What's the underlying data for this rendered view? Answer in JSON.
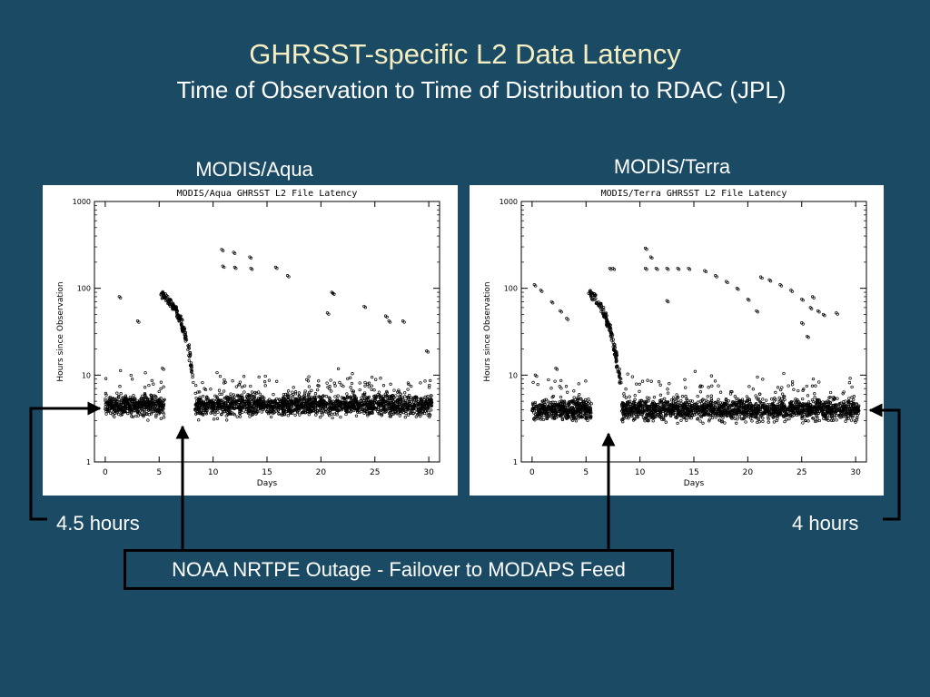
{
  "slide": {
    "title": "GHRSST-specific L2 Data Latency",
    "subtitle": "Time of Observation to Time of Distribution to RDAC (JPL)"
  },
  "panels": {
    "aqua_heading": "MODIS/Aqua",
    "terra_heading": "MODIS/Terra"
  },
  "annotations": {
    "aqua_latency": "4.5 hours",
    "terra_latency": "4 hours",
    "outage": "NOAA NRTPE Outage - Failover to MODAPS Feed"
  },
  "colors": {
    "background": "#1a4a64",
    "title": "#f5eec2",
    "text": "#ffffff",
    "arrows": "#000000"
  },
  "chart_data": [
    {
      "type": "scatter",
      "title": "MODIS/Aqua GHRSST L2 File Latency",
      "xlabel": "Days",
      "ylabel": "Hours since Observation",
      "xlim": [
        -1,
        31
      ],
      "ylim": [
        1,
        1000
      ],
      "log_y": true,
      "x_ticks": [
        0,
        5,
        10,
        15,
        20,
        25,
        30
      ],
      "y_ticks": [
        1,
        10,
        100,
        1000
      ],
      "baseline": {
        "median_hours": 4.5,
        "gap": [
          5.5,
          8.3
        ]
      },
      "outage_decay": [
        [
          5.2,
          85
        ],
        [
          6.0,
          70
        ],
        [
          6.6,
          55
        ],
        [
          7.0,
          42
        ],
        [
          7.4,
          30
        ],
        [
          7.8,
          18
        ],
        [
          8.2,
          8
        ]
      ],
      "outliers": [
        [
          1.3,
          80
        ],
        [
          3.0,
          42
        ],
        [
          10.8,
          280
        ],
        [
          10.9,
          180
        ],
        [
          11.9,
          260
        ],
        [
          12.0,
          175
        ],
        [
          13.4,
          230
        ],
        [
          13.5,
          170
        ],
        [
          15.8,
          175
        ],
        [
          16.9,
          140
        ],
        [
          21.0,
          90
        ],
        [
          21.1,
          88
        ],
        [
          20.6,
          52
        ],
        [
          24.0,
          62
        ],
        [
          26.0,
          48
        ],
        [
          26.3,
          42
        ],
        [
          27.6,
          42
        ],
        [
          29.8,
          19
        ],
        [
          5.3,
          12
        ],
        [
          9.2,
          7
        ]
      ]
    },
    {
      "type": "scatter",
      "title": "MODIS/Terra GHRSST L2 File Latency",
      "xlabel": "Days",
      "ylabel": "Hours since Observation",
      "xlim": [
        -1,
        31
      ],
      "ylim": [
        1,
        1000
      ],
      "log_y": true,
      "x_ticks": [
        0,
        5,
        10,
        15,
        20,
        25,
        30
      ],
      "y_ticks": [
        1,
        10,
        100,
        1000
      ],
      "baseline": {
        "median_hours": 4.0,
        "gap": [
          5.5,
          8.3
        ]
      },
      "outage_decay": [
        [
          5.3,
          90
        ],
        [
          6.0,
          72
        ],
        [
          6.6,
          55
        ],
        [
          7.0,
          40
        ],
        [
          7.4,
          28
        ],
        [
          7.8,
          16
        ],
        [
          8.2,
          8
        ]
      ],
      "outliers": [
        [
          0.2,
          110
        ],
        [
          0.8,
          95
        ],
        [
          1.8,
          70
        ],
        [
          2.6,
          55
        ],
        [
          3.2,
          45
        ],
        [
          7.2,
          170
        ],
        [
          7.5,
          170
        ],
        [
          10.5,
          290
        ],
        [
          11.0,
          230
        ],
        [
          10.5,
          170
        ],
        [
          11.5,
          170
        ],
        [
          12.5,
          170
        ],
        [
          13.5,
          170
        ],
        [
          14.5,
          170
        ],
        [
          12.5,
          72
        ],
        [
          16.0,
          160
        ],
        [
          17.0,
          140
        ],
        [
          18.0,
          120
        ],
        [
          19.0,
          100
        ],
        [
          20.0,
          75
        ],
        [
          20.8,
          55
        ],
        [
          21.2,
          135
        ],
        [
          22.0,
          125
        ],
        [
          23.0,
          110
        ],
        [
          24.0,
          95
        ],
        [
          25.0,
          75
        ],
        [
          25.8,
          60
        ],
        [
          26.5,
          55
        ],
        [
          27.0,
          50
        ],
        [
          28.2,
          52
        ],
        [
          25.0,
          40
        ],
        [
          25.5,
          28
        ],
        [
          26.0,
          80
        ],
        [
          2.2,
          12
        ],
        [
          0.3,
          10
        ]
      ]
    }
  ]
}
